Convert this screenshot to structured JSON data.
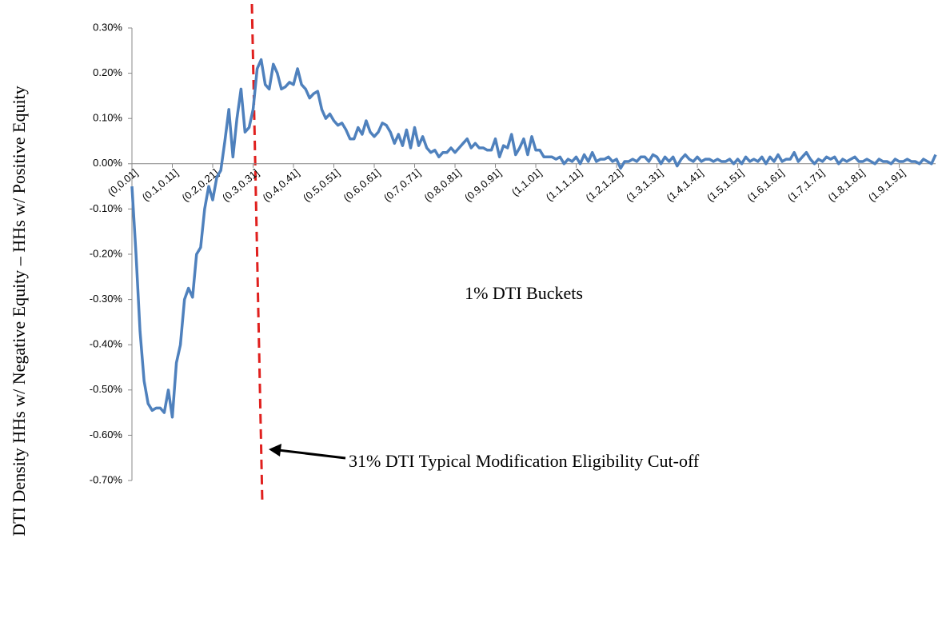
{
  "chart_data": {
    "type": "line",
    "y_label": "DTI Density HHs w/ Negative Equity – HHs w/ Positive Equity",
    "x_label": "1% DTI Buckets",
    "annotation": "31% DTI Typical Modification Eligibility Cut-off",
    "ylim": [
      -0.7,
      0.3
    ],
    "yticks": [
      {
        "value": 0.3,
        "label": "0.30%"
      },
      {
        "value": 0.2,
        "label": "0.20%"
      },
      {
        "value": 0.1,
        "label": "0.10%"
      },
      {
        "value": 0,
        "label": "0.00%"
      },
      {
        "value": -0.1,
        "label": "-0.10%"
      },
      {
        "value": -0.2,
        "label": "-0.20%"
      },
      {
        "value": -0.3,
        "label": "-0.30%"
      },
      {
        "value": -0.4,
        "label": "-0.40%"
      },
      {
        "value": -0.5,
        "label": "-0.50%"
      },
      {
        "value": -0.6,
        "label": "-0.60%"
      },
      {
        "value": -0.7,
        "label": "-0.70%"
      }
    ],
    "categories": [
      "(0,0.01]",
      null,
      null,
      null,
      null,
      null,
      null,
      null,
      null,
      null,
      "(0.1,0.11]",
      null,
      null,
      null,
      null,
      null,
      null,
      null,
      null,
      null,
      "(0.2,0.21]",
      null,
      null,
      null,
      null,
      null,
      null,
      null,
      null,
      null,
      "(0.3,0.31]",
      null,
      null,
      null,
      null,
      null,
      null,
      null,
      null,
      null,
      "(0.4,0.41]",
      null,
      null,
      null,
      null,
      null,
      null,
      null,
      null,
      null,
      "(0.5,0.51]",
      null,
      null,
      null,
      null,
      null,
      null,
      null,
      null,
      null,
      "(0.6,0.61]",
      null,
      null,
      null,
      null,
      null,
      null,
      null,
      null,
      null,
      "(0.7,0.71]",
      null,
      null,
      null,
      null,
      null,
      null,
      null,
      null,
      null,
      "(0.8,0.81]",
      null,
      null,
      null,
      null,
      null,
      null,
      null,
      null,
      null,
      "(0.9,0.91]",
      null,
      null,
      null,
      null,
      null,
      null,
      null,
      null,
      null,
      "(1,1.01]",
      null,
      null,
      null,
      null,
      null,
      null,
      null,
      null,
      null,
      "(1.1,1.11]",
      null,
      null,
      null,
      null,
      null,
      null,
      null,
      null,
      null,
      "(1.2,1.21]",
      null,
      null,
      null,
      null,
      null,
      null,
      null,
      null,
      null,
      "(1.3,1.31]",
      null,
      null,
      null,
      null,
      null,
      null,
      null,
      null,
      null,
      "(1.4,1.41]",
      null,
      null,
      null,
      null,
      null,
      null,
      null,
      null,
      null,
      "(1.5,1.51]",
      null,
      null,
      null,
      null,
      null,
      null,
      null,
      null,
      null,
      "(1.6,1.61]",
      null,
      null,
      null,
      null,
      null,
      null,
      null,
      null,
      null,
      "(1.7,1.71]",
      null,
      null,
      null,
      null,
      null,
      null,
      null,
      null,
      null,
      "(1.8,1.81]",
      null,
      null,
      null,
      null,
      null,
      null,
      null,
      null,
      null,
      "(1.9,1.91]",
      null,
      null,
      null,
      null,
      null,
      null,
      null,
      null,
      null
    ],
    "color": "#4f81bd",
    "values": [
      -0.05,
      -0.2,
      -0.37,
      -0.48,
      -0.53,
      -0.545,
      -0.54,
      -0.54,
      -0.55,
      -0.5,
      -0.56,
      -0.44,
      -0.4,
      -0.3,
      -0.275,
      -0.295,
      -0.2,
      -0.185,
      -0.1,
      -0.05,
      -0.08,
      -0.03,
      -0.015,
      0.05,
      0.12,
      0.015,
      0.1,
      0.165,
      0.07,
      0.08,
      0.12,
      0.21,
      0.23,
      0.175,
      0.165,
      0.22,
      0.2,
      0.165,
      0.17,
      0.18,
      0.175,
      0.21,
      0.175,
      0.165,
      0.145,
      0.155,
      0.16,
      0.12,
      0.1,
      0.11,
      0.095,
      0.085,
      0.09,
      0.075,
      0.055,
      0.055,
      0.08,
      0.065,
      0.095,
      0.07,
      0.06,
      0.07,
      0.09,
      0.085,
      0.07,
      0.045,
      0.065,
      0.04,
      0.075,
      0.035,
      0.08,
      0.04,
      0.06,
      0.035,
      0.025,
      0.03,
      0.015,
      0.025,
      0.025,
      0.035,
      0.025,
      0.035,
      0.045,
      0.055,
      0.035,
      0.045,
      0.035,
      0.035,
      0.03,
      0.03,
      0.055,
      0.015,
      0.04,
      0.035,
      0.065,
      0.02,
      0.035,
      0.055,
      0.02,
      0.06,
      0.03,
      0.03,
      0.015,
      0.015,
      0.015,
      0.01,
      0.015,
      0,
      0.01,
      0.005,
      0.015,
      0,
      0.02,
      0.005,
      0.025,
      0.005,
      0.01,
      0.01,
      0.015,
      0.005,
      0.01,
      -0.01,
      0.005,
      0.005,
      0.01,
      0.005,
      0.015,
      0.015,
      0.005,
      0.02,
      0.015,
      0,
      0.015,
      0.005,
      0.015,
      -0.005,
      0.01,
      0.02,
      0.01,
      0.005,
      0.015,
      0.005,
      0.01,
      0.01,
      0.005,
      0.01,
      0.005,
      0.005,
      0.01,
      0,
      0.01,
      0,
      0.015,
      0.005,
      0.01,
      0.005,
      0.015,
      0,
      0.015,
      0.005,
      0.02,
      0.005,
      0.01,
      0.01,
      0.025,
      0.005,
      0.015,
      0.025,
      0.01,
      0,
      0.01,
      0.005,
      0.015,
      0.01,
      0.015,
      0,
      0.01,
      0.005,
      0.01,
      0.015,
      0.005,
      0.005,
      0.01,
      0.005,
      0,
      0.01,
      0.005,
      0.005,
      0,
      0.01,
      0.005,
      0.005,
      0.01,
      0.005,
      0.005,
      0,
      0.01,
      0.005,
      0,
      0.02
    ]
  }
}
